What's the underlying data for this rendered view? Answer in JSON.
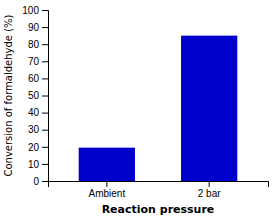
{
  "chart_data": {
    "type": "bar",
    "categories": [
      "Ambient",
      "2 bar"
    ],
    "values": [
      19.5,
      85.0
    ],
    "color": "#0000CC",
    "xlabel": "Reaction pressure",
    "ylabel": "Conversion of formaldehyde (%)",
    "ylim": [
      0,
      100
    ],
    "yticks": [
      0,
      10,
      20,
      30,
      40,
      50,
      60,
      70,
      80,
      90,
      100
    ],
    "grid": false
  }
}
